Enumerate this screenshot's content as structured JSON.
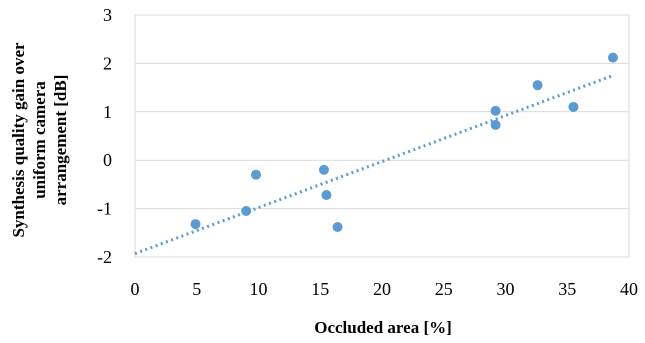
{
  "chart_data": {
    "type": "scatter",
    "xlabel": "Occluded area [%]",
    "ylabel_lines": [
      "Synthesis quality gain over",
      "uniform camera",
      "arrangement [dB]"
    ],
    "xlim": [
      0,
      40
    ],
    "ylim": [
      -2,
      3
    ],
    "xticks": [
      0,
      5,
      10,
      15,
      20,
      25,
      30,
      35,
      40
    ],
    "yticks": [
      -2,
      -1,
      0,
      1,
      2,
      3
    ],
    "grid": "horizontal",
    "series": [
      {
        "x": [
          4.9,
          9.0,
          9.8,
          15.3,
          15.5,
          16.4,
          29.2,
          29.2,
          32.6,
          35.5,
          38.7
        ],
        "y": [
          -1.32,
          -1.05,
          -0.3,
          -0.2,
          -0.72,
          -1.38,
          1.02,
          0.73,
          1.55,
          1.1,
          2.12
        ],
        "color": "#5b9bd5"
      }
    ],
    "trendline": {
      "type": "linear",
      "x": [
        0,
        38.7
      ],
      "y": [
        -1.93,
        1.75
      ],
      "style": "dotted",
      "color": "#5b9bd5"
    }
  }
}
